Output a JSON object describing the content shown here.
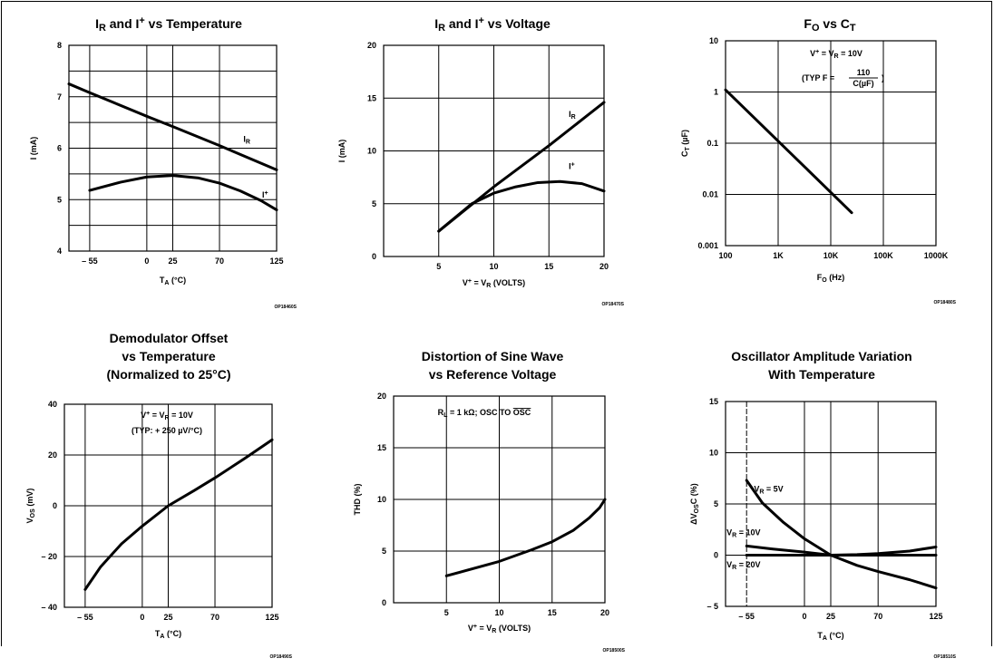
{
  "chart_data": [
    {
      "type": "line",
      "title": "IR and I+ vs Temperature",
      "xlabel": "TA (°C)",
      "ylabel": "I (mA)",
      "xlim": [
        -75,
        125
      ],
      "ylim": [
        4,
        8
      ],
      "x_ticks": [
        -55,
        0,
        25,
        70,
        125
      ],
      "x_tick_labels": [
        "– 55",
        "0",
        "25",
        "70",
        "125"
      ],
      "y_ticks": [
        4,
        5,
        6,
        7,
        8
      ],
      "y_tick_labels": [
        "4",
        "5",
        "6",
        "7",
        "8"
      ],
      "x_grid": [
        -55,
        0,
        25,
        70,
        125
      ],
      "y_grid": [
        4,
        4.5,
        5,
        5.5,
        6,
        6.5,
        7,
        7.5,
        8
      ],
      "series": [
        {
          "name": "IR",
          "x": [
            -75,
            -55,
            0,
            25,
            70,
            125
          ],
          "y": [
            7.25,
            7.08,
            6.62,
            6.42,
            6.05,
            5.58
          ]
        },
        {
          "name": "I+",
          "x": [
            -55,
            -25,
            0,
            25,
            50,
            70,
            90,
            110,
            125
          ],
          "y": [
            5.18,
            5.34,
            5.44,
            5.47,
            5.42,
            5.32,
            5.17,
            4.98,
            4.8
          ]
        }
      ],
      "annotations": [
        {
          "text": "IR",
          "x": 93,
          "y": 6.12
        },
        {
          "text": "I+",
          "x": 111,
          "y": 5.04
        }
      ],
      "code": "OP18460S",
      "grid": true
    },
    {
      "type": "line",
      "title": "IR and I+ vs Voltage",
      "xlabel": "V+ = VR (VOLTS)",
      "ylabel": "I (mA)",
      "xlim": [
        0,
        20
      ],
      "ylim": [
        0,
        20
      ],
      "x_ticks": [
        5,
        10,
        15,
        20
      ],
      "x_tick_labels": [
        "5",
        "10",
        "15",
        "20"
      ],
      "y_ticks": [
        0,
        5,
        10,
        15,
        20
      ],
      "y_tick_labels": [
        "0",
        "5",
        "10",
        "15",
        "20"
      ],
      "x_grid": [
        5,
        10,
        15,
        20
      ],
      "y_grid": [
        0,
        5,
        10,
        15,
        20
      ],
      "series": [
        {
          "name": "IR",
          "x": [
            5,
            10,
            15,
            20
          ],
          "y": [
            2.4,
            6.6,
            10.5,
            14.6
          ]
        },
        {
          "name": "I+",
          "x": [
            5,
            8,
            10,
            12,
            14,
            16,
            18,
            20
          ],
          "y": [
            2.4,
            5.0,
            6.0,
            6.6,
            7.0,
            7.1,
            6.9,
            6.2
          ]
        }
      ],
      "annotations": [
        {
          "text": "IR",
          "x": 16.8,
          "y": 13.2
        },
        {
          "text": "I+",
          "x": 16.8,
          "y": 8.3
        }
      ],
      "code": "OP18470S",
      "grid": true
    },
    {
      "type": "line",
      "title": "FO vs CT",
      "xlabel": "FO (Hz)",
      "ylabel": "CT (µF)",
      "xlim": [
        100,
        1000000
      ],
      "ylim": [
        0.001,
        10
      ],
      "xscale": "log",
      "yscale": "log",
      "x_ticks": [
        100,
        1000,
        10000,
        100000,
        1000000
      ],
      "x_tick_labels": [
        "100",
        "1K",
        "10K",
        "100K",
        "1000K"
      ],
      "y_ticks": [
        0.001,
        0.01,
        0.1,
        1,
        10
      ],
      "y_tick_labels": [
        "0.001",
        "0.01",
        "0.1",
        "1",
        "10"
      ],
      "series": [
        {
          "name": "",
          "x": [
            100,
            1000,
            10000,
            25000
          ],
          "y": [
            1.1,
            0.11,
            0.011,
            0.0044
          ]
        }
      ],
      "legend_box": [
        "V+ = VR = 10V",
        "(TYP  F = 110 / C(µF))"
      ],
      "code": "OP18480S",
      "grid": true
    },
    {
      "type": "line",
      "title": "Demodulator Offset vs Temperature (Normalized to 25°C)",
      "xlabel": "TA (°C)",
      "ylabel": "VOS (mV)",
      "xlim": [
        -75,
        125
      ],
      "ylim": [
        -40,
        40
      ],
      "x_ticks": [
        -55,
        0,
        25,
        70,
        125
      ],
      "x_tick_labels": [
        "– 55",
        "0",
        "25",
        "70",
        "125"
      ],
      "y_ticks": [
        -40,
        -20,
        0,
        20,
        40
      ],
      "y_tick_labels": [
        "– 40",
        "– 20",
        "0",
        "20",
        "40"
      ],
      "x_grid": [
        -55,
        0,
        25,
        70,
        125
      ],
      "y_grid": [
        -40,
        -20,
        0,
        20,
        40
      ],
      "series": [
        {
          "name": "",
          "x": [
            -55,
            -40,
            -20,
            0,
            25,
            50,
            70,
            100,
            125
          ],
          "y": [
            -33,
            -24,
            -15,
            -8,
            0,
            6,
            11,
            19,
            26
          ]
        }
      ],
      "legend_box": [
        "V+ = VR = 10V",
        "(TYP: + 250 µV/°C)"
      ],
      "code": "OP18490S",
      "grid": true
    },
    {
      "type": "line",
      "title": "Distortion of Sine Wave vs Reference Voltage",
      "xlabel": "V+ = VR (VOLTS)",
      "ylabel": "THD (%)",
      "xlim": [
        0,
        20
      ],
      "ylim": [
        0,
        20
      ],
      "x_ticks": [
        5,
        10,
        15,
        20
      ],
      "x_tick_labels": [
        "5",
        "10",
        "15",
        "20"
      ],
      "y_ticks": [
        0,
        5,
        10,
        15,
        20
      ],
      "y_tick_labels": [
        "0",
        "5",
        "10",
        "15",
        "20"
      ],
      "x_grid": [
        5,
        10,
        15,
        20
      ],
      "y_grid": [
        0,
        5,
        10,
        15,
        20
      ],
      "series": [
        {
          "name": "",
          "x": [
            5,
            10,
            13,
            15,
            17,
            18.5,
            19.5,
            20
          ],
          "y": [
            2.6,
            4.0,
            5.1,
            5.9,
            7.0,
            8.2,
            9.2,
            10.0
          ]
        }
      ],
      "legend_box": [
        "RL = 1 kΩ; OSC TO OSC"
      ],
      "code": "OP18500S",
      "grid": true
    },
    {
      "type": "line",
      "title": "Oscillator Amplitude Variation With Temperature",
      "xlabel": "TA (°C)",
      "ylabel": "ΔVOSC (%)",
      "xlim": [
        -75,
        125
      ],
      "ylim": [
        -5,
        15
      ],
      "x_ticks": [
        -55,
        0,
        25,
        70,
        125
      ],
      "x_tick_labels": [
        "– 55",
        "0",
        "25",
        "70",
        "125"
      ],
      "y_ticks": [
        -5,
        0,
        5,
        10,
        15
      ],
      "y_tick_labels": [
        "– 5",
        "0",
        "5",
        "10",
        "15"
      ],
      "x_grid": [
        -55,
        0,
        25,
        70,
        125
      ],
      "y_grid": [
        -5,
        0,
        5,
        10,
        15
      ],
      "series": [
        {
          "name": "VR = 5V",
          "x": [
            -55,
            -40,
            -20,
            0,
            25,
            50,
            70,
            100,
            125
          ],
          "y": [
            7.3,
            5.1,
            3.2,
            1.6,
            0,
            -1.0,
            -1.6,
            -2.4,
            -3.2
          ]
        },
        {
          "name": "VR = 10V",
          "x": [
            -55,
            -30,
            0,
            25,
            50,
            70,
            100,
            125
          ],
          "y": [
            0.9,
            0.6,
            0.3,
            0,
            0.05,
            0.15,
            0.4,
            0.8
          ]
        },
        {
          "name": "VR = 20V",
          "x": [
            -55,
            0,
            25,
            70,
            125
          ],
          "y": [
            0,
            0,
            0,
            0,
            0
          ]
        }
      ],
      "annotations": [
        {
          "text": "VR = 5V",
          "x": -48,
          "y": 6.2
        },
        {
          "text": "VR = 10V",
          "x": -74,
          "y": 1.95
        },
        {
          "text": "VR = 20V",
          "x": -74,
          "y": -1.2
        }
      ],
      "code": "OP18510S",
      "grid": true
    }
  ]
}
